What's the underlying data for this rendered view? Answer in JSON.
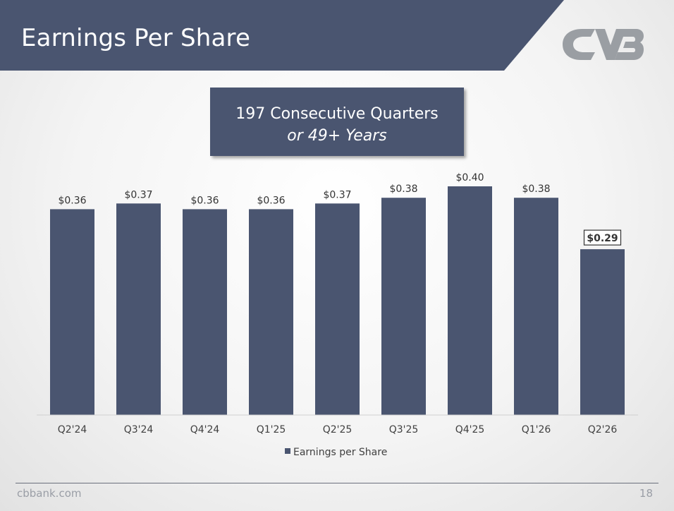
{
  "slide": {
    "title": "Earnings Per Share",
    "callout_line1": "197 Consecutive Quarters",
    "callout_line2": "or 49+ Years",
    "footer_url": "cbbank.com",
    "page_number": "18"
  },
  "logo": {
    "icon": "cvb-logo-icon"
  },
  "colors": {
    "header": "#4a5570",
    "bar": "#4a5570",
    "logo": "#9a9ea3",
    "highlight_border": "#333333"
  },
  "chart_data": {
    "type": "bar",
    "categories": [
      "Q2'24",
      "Q3'24",
      "Q4'24",
      "Q1'25",
      "Q2'25",
      "Q3'25",
      "Q4'25",
      "Q1'26",
      "Q2'26"
    ],
    "series": [
      {
        "name": "Earnings per Share",
        "values": [
          0.36,
          0.37,
          0.36,
          0.36,
          0.37,
          0.38,
          0.4,
          0.38,
          0.29
        ],
        "labels": [
          "$0.36",
          "$0.37",
          "$0.36",
          "$0.36",
          "$0.37",
          "$0.38",
          "$0.40",
          "$0.38",
          "$0.29"
        ]
      }
    ],
    "highlighted_index": 8,
    "ylim": [
      0,
      0.4
    ],
    "grid": false,
    "legend": "bottom"
  }
}
